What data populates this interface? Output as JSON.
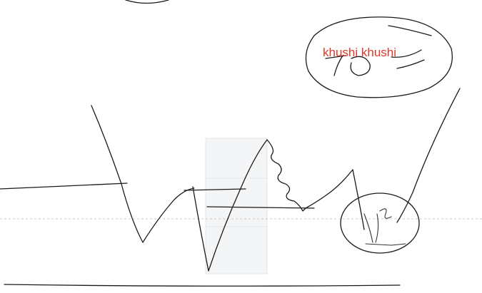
{
  "canvas": {
    "background_color": "#ffffff",
    "ink_color": "#1a1a1a",
    "guide_color": "#c8c8c8",
    "panel_color": "#f4f5f6"
  },
  "annotation": {
    "text": "khushi  khushi",
    "color": "#e0392b"
  }
}
